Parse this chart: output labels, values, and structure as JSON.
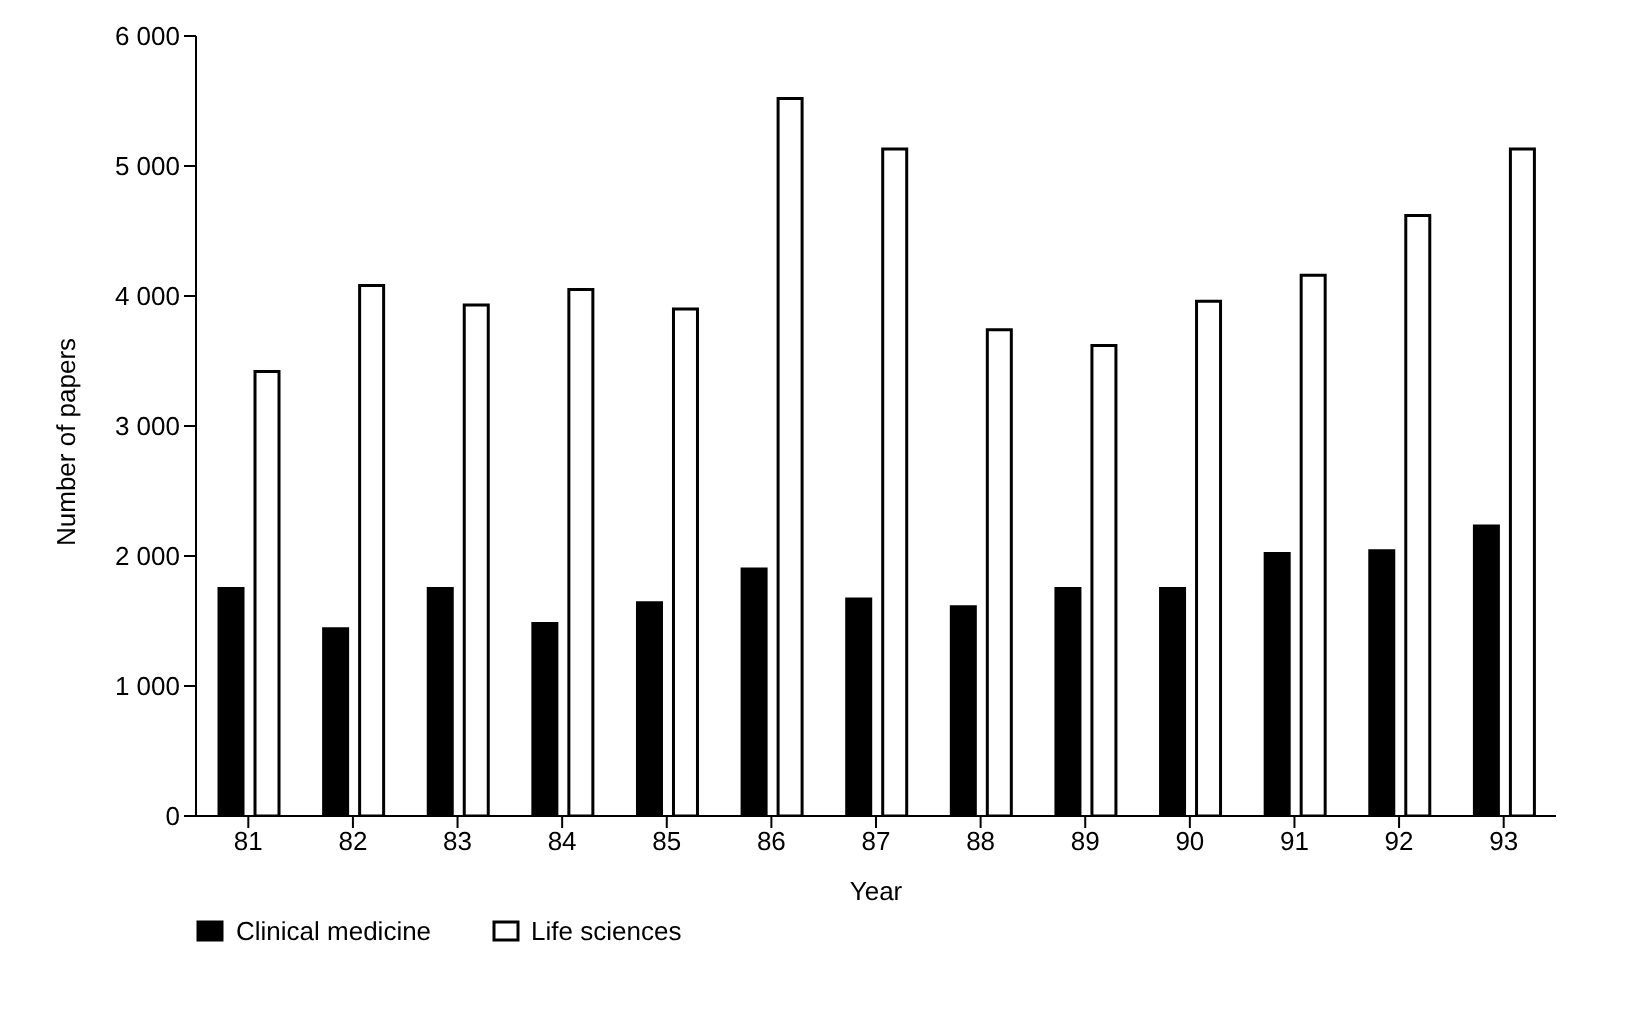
{
  "chart_data": {
    "type": "bar",
    "xlabel": "Year",
    "ylabel": "Number of papers",
    "categories": [
      "81",
      "82",
      "83",
      "84",
      "85",
      "86",
      "87",
      "88",
      "89",
      "90",
      "91",
      "92",
      "93"
    ],
    "series": [
      {
        "name": "Clinical medicine",
        "color": "#000000",
        "values": [
          1750,
          1440,
          1750,
          1480,
          1640,
          1900,
          1670,
          1610,
          1750,
          1750,
          2020,
          2040,
          2230
        ]
      },
      {
        "name": "Life sciences",
        "color": "#ffffff",
        "values": [
          3420,
          4080,
          3930,
          4050,
          3900,
          5520,
          5130,
          3740,
          3620,
          3960,
          4160,
          4620,
          5130
        ]
      }
    ],
    "ylim": [
      0,
      6000
    ],
    "yticks": [
      {
        "value": 0,
        "label": "0"
      },
      {
        "value": 1000,
        "label": "1 000"
      },
      {
        "value": 2000,
        "label": "2 000"
      },
      {
        "value": 3000,
        "label": "3 000"
      },
      {
        "value": 4000,
        "label": "4 000"
      },
      {
        "value": 5000,
        "label": "5 000"
      },
      {
        "value": 6000,
        "label": "6 000"
      }
    ],
    "grid": false,
    "legend": "bottom left"
  }
}
